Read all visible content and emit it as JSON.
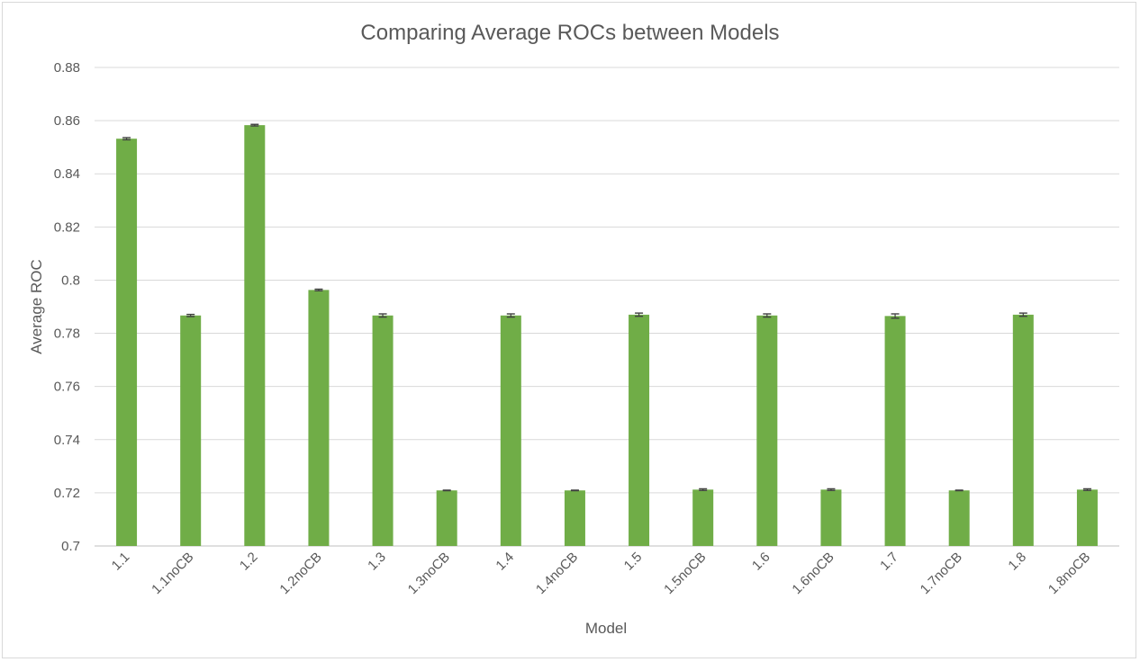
{
  "chart_data": {
    "type": "bar",
    "title": "Comparing Average ROCs between Models",
    "xlabel": "Model",
    "ylabel": "Average ROC",
    "ylim": [
      0.7,
      0.88
    ],
    "yticks": [
      "0.7",
      "0.72",
      "0.74",
      "0.76",
      "0.78",
      "0.8",
      "0.82",
      "0.84",
      "0.86",
      "0.88"
    ],
    "grid": true,
    "legend": "none",
    "bar_color": "#70ad47",
    "error_bar_color": "#404040",
    "categories": [
      "1.1",
      "1.1noCB",
      "1.2",
      "1.2noCB",
      "1.3",
      "1.3noCB",
      "1.4",
      "1.4noCB",
      "1.5",
      "1.5noCB",
      "1.6",
      "1.6noCB",
      "1.7",
      "1.7noCB",
      "1.8",
      "1.8noCB"
    ],
    "values": [
      0.8532,
      0.7867,
      0.8583,
      0.7963,
      0.7867,
      0.7209,
      0.7867,
      0.7209,
      0.787,
      0.7212,
      0.7867,
      0.7212,
      0.7865,
      0.7209,
      0.787,
      0.7212
    ],
    "errors": [
      0.0004,
      0.0004,
      0.0003,
      0.0003,
      0.0006,
      0.0001,
      0.0006,
      0.0001,
      0.0006,
      0.0003,
      0.0006,
      0.0003,
      0.0008,
      0.0001,
      0.0006,
      0.0003
    ]
  }
}
